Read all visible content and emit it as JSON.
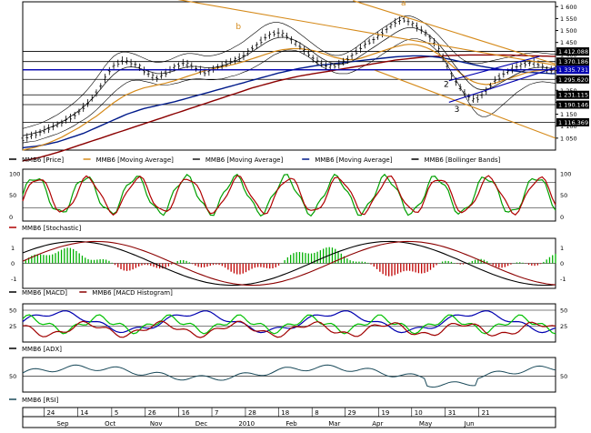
{
  "colors": {
    "price": "#000000",
    "ma_short": "#1a1a1a",
    "ma_orange": "#d58a1a",
    "ma_long": "#8b0000",
    "ma_blue": "#001a8a",
    "bollinger": "#000000",
    "stoch_green": "#00a000",
    "stoch_red": "#b00000",
    "hist_green": "#00b000",
    "hist_red": "#c00000",
    "adx_blue": "#0000b0",
    "adx_green": "#00c000",
    "adx_red": "#a00000",
    "rsi": "#1a4a5a",
    "highlight": "#0000b0",
    "trend_orange": "#d58a1a"
  },
  "chart_data": [
    {
      "type": "line",
      "panel": "price",
      "ylim": [
        1000,
        1620
      ],
      "yticks": [
        1050,
        1100,
        1150,
        1200,
        1250,
        1300,
        1350,
        1400,
        1450,
        1500,
        1550,
        1600
      ],
      "ytick_labels": [
        "1 050",
        "1 100",
        "1 150",
        "1 200",
        "1 250",
        "1 300",
        "1 350",
        "1 400",
        "1 450",
        "1 500",
        "1 550",
        "1 600"
      ],
      "level_labels": [
        {
          "label": "1 412.274",
          "value": 1412.274,
          "highlight": false
        },
        {
          "label": "1 412.088",
          "value": 1412.088,
          "highlight": false
        },
        {
          "label": "1 370.186",
          "value": 1370.186,
          "highlight": false
        },
        {
          "label": "1 335.731",
          "value": 1335.731,
          "highlight": true
        },
        {
          "label": "1 295.620",
          "value": 1295.62,
          "highlight": false
        },
        {
          "label": "1 231.115",
          "value": 1231.115,
          "highlight": false
        },
        {
          "label": "1 190.146",
          "value": 1190.146,
          "highlight": false
        },
        {
          "label": "1 116.369",
          "value": 1116.369,
          "highlight": false
        }
      ],
      "wave_labels": [
        {
          "label": "a",
          "t": 0.71,
          "v": 1605
        },
        {
          "label": "b",
          "t": 0.4,
          "v": 1505
        },
        {
          "label": "2",
          "t": 0.79,
          "v": 1265
        },
        {
          "label": "3",
          "t": 0.81,
          "v": 1160
        }
      ],
      "price": [
        1045,
        1052,
        1060,
        1068,
        1075,
        1082,
        1090,
        1098,
        1106,
        1115,
        1125,
        1135,
        1145,
        1160,
        1178,
        1195,
        1215,
        1240,
        1268,
        1300,
        1330,
        1352,
        1365,
        1372,
        1370,
        1365,
        1358,
        1350,
        1330,
        1318,
        1308,
        1300,
        1310,
        1322,
        1335,
        1348,
        1355,
        1362,
        1360,
        1352,
        1340,
        1332,
        1322,
        1330,
        1340,
        1348,
        1352,
        1362,
        1370,
        1378,
        1385,
        1395,
        1410,
        1425,
        1440,
        1455,
        1470,
        1482,
        1488,
        1490,
        1485,
        1475,
        1462,
        1448,
        1432,
        1418,
        1402,
        1385,
        1370,
        1360,
        1352,
        1350,
        1352,
        1358,
        1368,
        1380,
        1395,
        1410,
        1425,
        1440,
        1452,
        1462,
        1475,
        1490,
        1505,
        1520,
        1532,
        1540,
        1545,
        1538,
        1528,
        1515,
        1502,
        1488,
        1470,
        1448,
        1420,
        1388,
        1352,
        1315,
        1285,
        1260,
        1240,
        1222,
        1210,
        1215,
        1230,
        1250,
        1270,
        1290,
        1305,
        1318,
        1328,
        1338,
        1348,
        1356,
        1360,
        1364,
        1365,
        1358,
        1348,
        1338,
        1332,
        1330
      ],
      "ma_short": [
        1060,
        1064,
        1068,
        1072,
        1078,
        1085,
        1092,
        1100,
        1108,
        1118,
        1128,
        1140,
        1152,
        1166,
        1180,
        1196,
        1214,
        1234,
        1256,
        1278,
        1298,
        1316,
        1330,
        1340,
        1346,
        1348,
        1346,
        1342,
        1336,
        1330,
        1325,
        1320,
        1320,
        1322,
        1326,
        1332,
        1338,
        1344,
        1348,
        1350,
        1350,
        1348,
        1345,
        1344,
        1345,
        1348,
        1352,
        1358,
        1365,
        1372,
        1380,
        1390,
        1400,
        1412,
        1424,
        1436,
        1448,
        1458,
        1466,
        1470,
        1472,
        1470,
        1465,
        1458,
        1448,
        1436,
        1424,
        1410,
        1396,
        1384,
        1374,
        1366,
        1360,
        1358,
        1360,
        1364,
        1372,
        1382,
        1394,
        1406,
        1418,
        1430,
        1442,
        1454,
        1466,
        1478,
        1490,
        1500,
        1508,
        1512,
        1512,
        1508,
        1500,
        1490,
        1478,
        1462,
        1444,
        1422,
        1398,
        1372,
        1348,
        1324,
        1302,
        1282,
        1266,
        1256,
        1252,
        1254,
        1260,
        1268,
        1278,
        1288,
        1298,
        1308,
        1318,
        1326,
        1334,
        1340,
        1344,
        1346,
        1346,
        1344,
        1342,
        1340
      ],
      "ma_orange": [
        1000,
        1004,
        1008,
        1012,
        1018,
        1024,
        1030,
        1038,
        1046,
        1054,
        1064,
        1074,
        1084,
        1094,
        1106,
        1118,
        1130,
        1142,
        1156,
        1170,
        1184,
        1198,
        1210,
        1222,
        1232,
        1240,
        1248,
        1254,
        1260,
        1264,
        1268,
        1272,
        1276,
        1280,
        1285,
        1290,
        1296,
        1302,
        1308,
        1314,
        1320,
        1326,
        1332,
        1336,
        1340,
        1344,
        1348,
        1352,
        1356,
        1360,
        1365,
        1370,
        1376,
        1382,
        1388,
        1394,
        1400,
        1406,
        1412,
        1416,
        1420,
        1422,
        1424,
        1424,
        1424,
        1422,
        1420,
        1416,
        1412,
        1406,
        1400,
        1394,
        1388,
        1384,
        1380,
        1378,
        1378,
        1380,
        1384,
        1390,
        1396,
        1402,
        1408,
        1414,
        1420,
        1426,
        1432,
        1436,
        1440,
        1442,
        1442,
        1440,
        1436,
        1430,
        1422,
        1412,
        1400,
        1386,
        1370,
        1354,
        1338,
        1322,
        1308,
        1296,
        1286,
        1280,
        1276,
        1274,
        1276,
        1280,
        1286,
        1292,
        1298,
        1304,
        1310,
        1316,
        1322,
        1326,
        1330,
        1332,
        1334,
        1334,
        1334,
        1334
      ],
      "ma_blue": [
        1010,
        1012,
        1014,
        1016,
        1019,
        1022,
        1026,
        1030,
        1034,
        1040,
        1046,
        1052,
        1058,
        1064,
        1070,
        1078,
        1086,
        1094,
        1102,
        1110,
        1118,
        1126,
        1134,
        1142,
        1150,
        1156,
        1162,
        1168,
        1174,
        1178,
        1182,
        1186,
        1190,
        1194,
        1198,
        1202,
        1207,
        1212,
        1217,
        1222,
        1227,
        1232,
        1237,
        1242,
        1247,
        1252,
        1257,
        1262,
        1267,
        1272,
        1277,
        1282,
        1287,
        1292,
        1297,
        1302,
        1307,
        1312,
        1317,
        1322,
        1326,
        1330,
        1334,
        1338,
        1342,
        1345,
        1348,
        1351,
        1354,
        1356,
        1358,
        1360,
        1362,
        1364,
        1366,
        1368,
        1370,
        1372,
        1374,
        1376,
        1378,
        1380,
        1382,
        1384,
        1386,
        1388,
        1390,
        1391,
        1392,
        1393,
        1394,
        1394,
        1394,
        1393,
        1392,
        1390,
        1388,
        1385,
        1382,
        1378,
        1374,
        1370,
        1366,
        1362,
        1358,
        1354,
        1350,
        1347,
        1344,
        1341,
        1338,
        1336,
        1334,
        1332,
        1330,
        1328,
        1326,
        1325,
        1324,
        1323,
        1322,
        1321,
        1320,
        1320
      ],
      "ma_long": [
        955,
        958,
        962,
        966,
        970,
        975,
        980,
        985,
        990,
        996,
        1002,
        1008,
        1014,
        1020,
        1026,
        1032,
        1038,
        1044,
        1050,
        1056,
        1062,
        1068,
        1074,
        1080,
        1086,
        1092,
        1098,
        1104,
        1110,
        1116,
        1122,
        1128,
        1134,
        1140,
        1146,
        1152,
        1158,
        1164,
        1170,
        1176,
        1182,
        1188,
        1194,
        1200,
        1206,
        1212,
        1218,
        1224,
        1230,
        1236,
        1242,
        1248,
        1254,
        1260,
        1265,
        1270,
        1275,
        1280,
        1285,
        1290,
        1294,
        1298,
        1302,
        1306,
        1310,
        1313,
        1316,
        1319,
        1322,
        1325,
        1328,
        1331,
        1334,
        1337,
        1340,
        1343,
        1346,
        1349,
        1352,
        1355,
        1358,
        1361,
        1364,
        1367,
        1370,
        1373,
        1376,
        1378,
        1380,
        1382,
        1384,
        1386,
        1388,
        1390,
        1391,
        1392,
        1393,
        1394,
        1395,
        1396,
        1396,
        1397,
        1397,
        1398,
        1398,
        1398,
        1398,
        1398,
        1398,
        1398,
        1398,
        1398,
        1397,
        1397,
        1396,
        1396,
        1395,
        1395,
        1394,
        1394,
        1393,
        1393,
        1392,
        1392
      ],
      "bb_upper": [
        1090,
        1095,
        1100,
        1106,
        1112,
        1120,
        1128,
        1138,
        1148,
        1160,
        1172,
        1186,
        1200,
        1216,
        1234,
        1254,
        1276,
        1300,
        1326,
        1352,
        1374,
        1392,
        1404,
        1410,
        1410,
        1406,
        1400,
        1392,
        1384,
        1376,
        1370,
        1366,
        1368,
        1372,
        1378,
        1386,
        1394,
        1400,
        1404,
        1404,
        1402,
        1398,
        1394,
        1394,
        1396,
        1400,
        1406,
        1414,
        1422,
        1432,
        1442,
        1454,
        1468,
        1482,
        1496,
        1510,
        1522,
        1530,
        1534,
        1534,
        1530,
        1522,
        1512,
        1500,
        1486,
        1472,
        1458,
        1444,
        1430,
        1418,
        1408,
        1400,
        1396,
        1396,
        1400,
        1408,
        1418,
        1430,
        1444,
        1458,
        1472,
        1484,
        1496,
        1508,
        1520,
        1532,
        1544,
        1554,
        1560,
        1562,
        1558,
        1550,
        1540,
        1528,
        1514,
        1498,
        1480,
        1460,
        1440,
        1420,
        1402,
        1386,
        1374,
        1366,
        1362,
        1362,
        1364,
        1368,
        1372,
        1376,
        1380,
        1384,
        1388,
        1392,
        1396,
        1400,
        1404,
        1406,
        1408,
        1408,
        1406,
        1404,
        1402,
        1400
      ],
      "bb_lower": [
        1030,
        1033,
        1036,
        1038,
        1044,
        1050,
        1056,
        1062,
        1068,
        1076,
        1084,
        1094,
        1104,
        1116,
        1126,
        1138,
        1152,
        1168,
        1186,
        1204,
        1222,
        1240,
        1256,
        1270,
        1282,
        1290,
        1292,
        1292,
        1288,
        1284,
        1280,
        1274,
        1272,
        1272,
        1274,
        1278,
        1282,
        1288,
        1292,
        1296,
        1298,
        1298,
        1296,
        1294,
        1294,
        1296,
        1298,
        1302,
        1308,
        1312,
        1318,
        1326,
        1332,
        1342,
        1352,
        1362,
        1374,
        1386,
        1398,
        1406,
        1414,
        1418,
        1418,
        1416,
        1410,
        1400,
        1390,
        1376,
        1362,
        1350,
        1340,
        1332,
        1324,
        1320,
        1320,
        1320,
        1326,
        1334,
        1344,
        1354,
        1364,
        1376,
        1388,
        1400,
        1412,
        1424,
        1436,
        1446,
        1456,
        1462,
        1466,
        1466,
        1460,
        1452,
        1442,
        1426,
        1408,
        1384,
        1356,
        1324,
        1294,
        1262,
        1230,
        1198,
        1170,
        1150,
        1140,
        1140,
        1148,
        1160,
        1176,
        1192,
        1208,
        1224,
        1240,
        1252,
        1264,
        1274,
        1280,
        1284,
        1286,
        1284,
        1282,
        1280
      ],
      "trendlines": [
        {
          "color": "orange",
          "from": [
            0.29,
            1630
          ],
          "to": [
            1.0,
            1355
          ]
        },
        {
          "color": "orange",
          "from": [
            0.62,
            1625
          ],
          "to": [
            1.0,
            1360
          ]
        },
        {
          "color": "orange",
          "from": [
            0.66,
            1335
          ],
          "to": [
            1.0,
            1050
          ]
        },
        {
          "color": "blue",
          "from": [
            0.0,
            1336
          ],
          "to": [
            1.0,
            1336
          ]
        },
        {
          "color": "blue",
          "from": [
            0.8,
            1200
          ],
          "to": [
            1.0,
            1345
          ]
        },
        {
          "color": "blue",
          "from": [
            0.8,
            1290
          ],
          "to": [
            0.97,
            1392
          ]
        }
      ],
      "legend": [
        "MMB6 [Price]",
        "MMB6 [Moving Average]",
        "MMB6 [Moving Average]",
        "MMB6 [Moving Average]",
        "MMB6 [Bollinger Bands]"
      ]
    },
    {
      "type": "line",
      "panel": "stochastic",
      "ylim": [
        -10,
        110
      ],
      "yticks": [
        0,
        50,
        100
      ],
      "ytick_labels": [
        "0",
        "50",
        "100"
      ],
      "levels": [
        20,
        80
      ],
      "legend": [
        "MMB6 [Stochastic]"
      ]
    },
    {
      "type": "bar",
      "panel": "macd",
      "ylim": [
        -1.6,
        1.6
      ],
      "yticks": [
        -1,
        0,
        1
      ],
      "ytick_labels": [
        "-1",
        "0",
        "1"
      ],
      "legend": [
        "MMB6 [MACD]",
        "MMB6 [MACD Histogram]"
      ]
    },
    {
      "type": "line",
      "panel": "adx",
      "ylim": [
        0,
        60
      ],
      "yticks": [
        25,
        50
      ],
      "ytick_labels": [
        "25",
        "50"
      ],
      "legend": [
        "MMB6 [ADX]"
      ]
    },
    {
      "type": "line",
      "panel": "rsi",
      "ylim": [
        20,
        85
      ],
      "yticks": [
        50
      ],
      "ytick_labels": [
        "50"
      ],
      "legend": [
        "MMB6 [RSI]"
      ]
    }
  ],
  "x_axis": {
    "days": [
      "24",
      "14",
      "5",
      "26",
      "16",
      "7",
      "28",
      "18",
      "8",
      "29",
      "19",
      "10",
      "31",
      "21"
    ],
    "day_positions": [
      0.04,
      0.103,
      0.167,
      0.23,
      0.293,
      0.355,
      0.418,
      0.48,
      0.543,
      0.605,
      0.668,
      0.73,
      0.793,
      0.856
    ],
    "months": [
      "Sep",
      "Oct",
      "Nov",
      "Dec",
      "2010",
      "Feb",
      "Mar",
      "Apr",
      "May",
      "Jun"
    ],
    "month_positions": [
      0.075,
      0.165,
      0.25,
      0.335,
      0.42,
      0.505,
      0.585,
      0.667,
      0.755,
      0.84
    ]
  }
}
